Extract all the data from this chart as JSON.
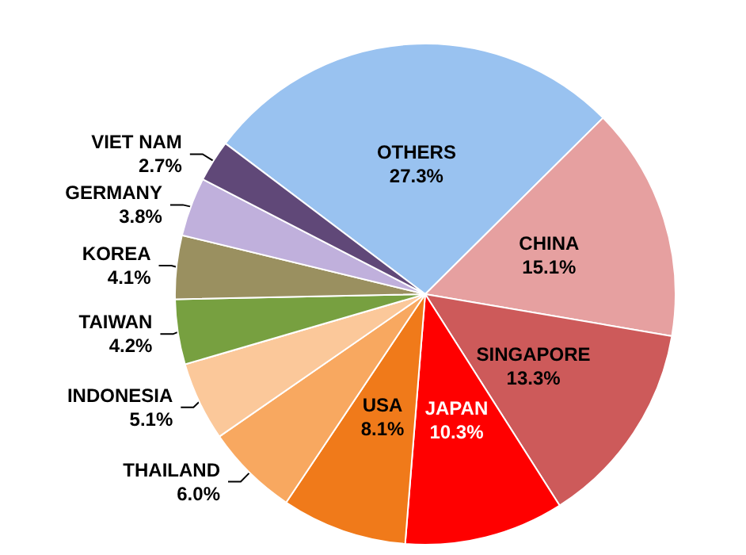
{
  "chart_data": {
    "type": "pie",
    "categories": [
      "OTHERS",
      "CHINA",
      "SINGAPORE",
      "JAPAN",
      "USA",
      "THAILAND",
      "INDONESIA",
      "TAIWAN",
      "KOREA",
      "GERMANY",
      "VIET NAM"
    ],
    "values": [
      27.3,
      15.1,
      13.3,
      10.3,
      8.1,
      6.0,
      5.1,
      4.2,
      4.1,
      3.8,
      2.7
    ],
    "value_labels": [
      "27.3%",
      "15.1%",
      "13.3%",
      "10.3%",
      "8.1%",
      "6.0%",
      "5.1%",
      "4.2%",
      "4.1%",
      "3.8%",
      "2.7%"
    ],
    "colors": [
      "#99c2f0",
      "#e6a0a0",
      "#cd5a5a",
      "#ff0000",
      "#f07a1a",
      "#f8a860",
      "#fbc89a",
      "#77a040",
      "#9a9060",
      "#c0b0dc",
      "#604878"
    ],
    "legend": false
  }
}
